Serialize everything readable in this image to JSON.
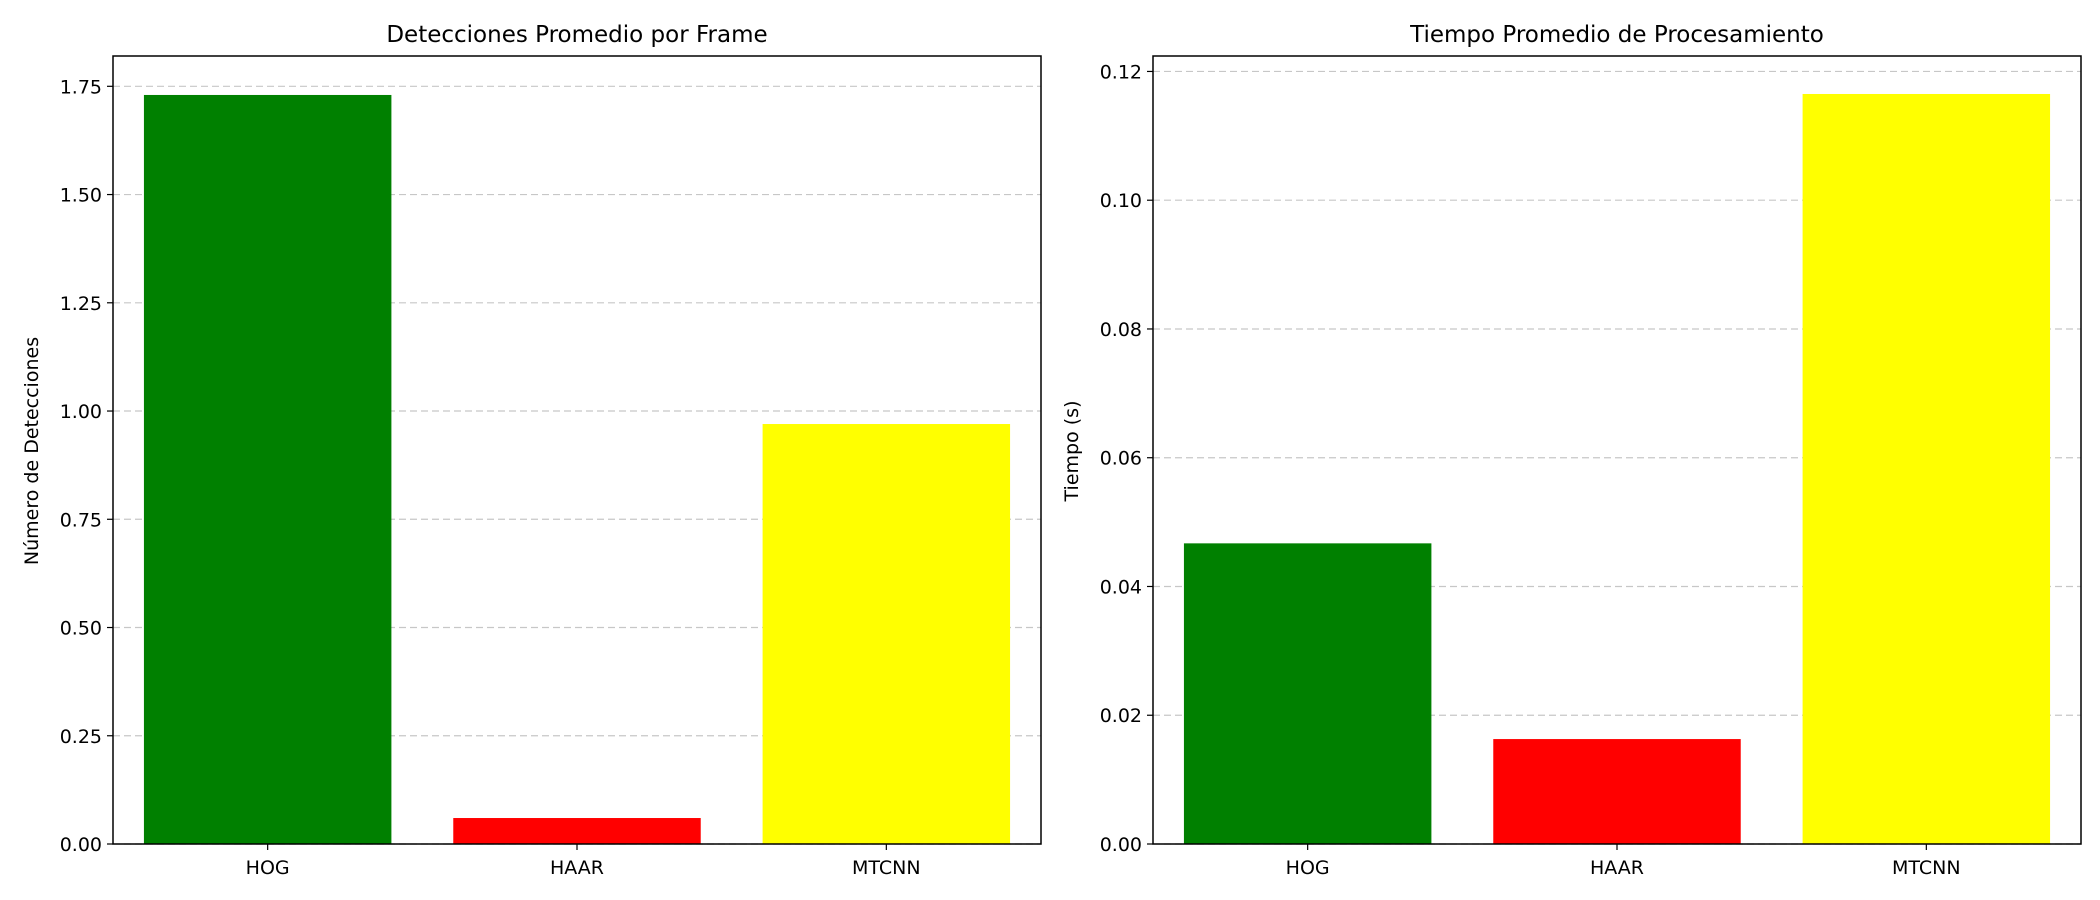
{
  "chart_data": [
    {
      "type": "bar",
      "title": "Detecciones Promedio por Frame",
      "xlabel": "",
      "ylabel": "Número de Detecciones",
      "categories": [
        "HOG",
        "HAAR",
        "MTCNN"
      ],
      "values": [
        1.73,
        0.06,
        0.97
      ],
      "colors": [
        "#008000",
        "#ff0000",
        "#ffff00"
      ],
      "ylim": [
        0,
        1.82
      ],
      "yticks": [
        0.0,
        0.25,
        0.5,
        0.75,
        1.0,
        1.25,
        1.5,
        1.75
      ],
      "ytick_labels": [
        "0.00",
        "0.25",
        "0.50",
        "0.75",
        "1.00",
        "1.25",
        "1.50",
        "1.75"
      ],
      "grid": "y-dashed"
    },
    {
      "type": "bar",
      "title": "Tiempo Promedio de Procesamiento",
      "xlabel": "",
      "ylabel": "Tiempo (s)",
      "categories": [
        "HOG",
        "HAAR",
        "MTCNN"
      ],
      "values": [
        0.0467,
        0.0163,
        0.1165
      ],
      "colors": [
        "#008000",
        "#ff0000",
        "#ffff00"
      ],
      "ylim": [
        0,
        0.1224
      ],
      "yticks": [
        0.0,
        0.02,
        0.04,
        0.06,
        0.08,
        0.1,
        0.12
      ],
      "ytick_labels": [
        "0.00",
        "0.02",
        "0.04",
        "0.06",
        "0.08",
        "0.10",
        "0.12"
      ],
      "grid": "y-dashed"
    }
  ]
}
